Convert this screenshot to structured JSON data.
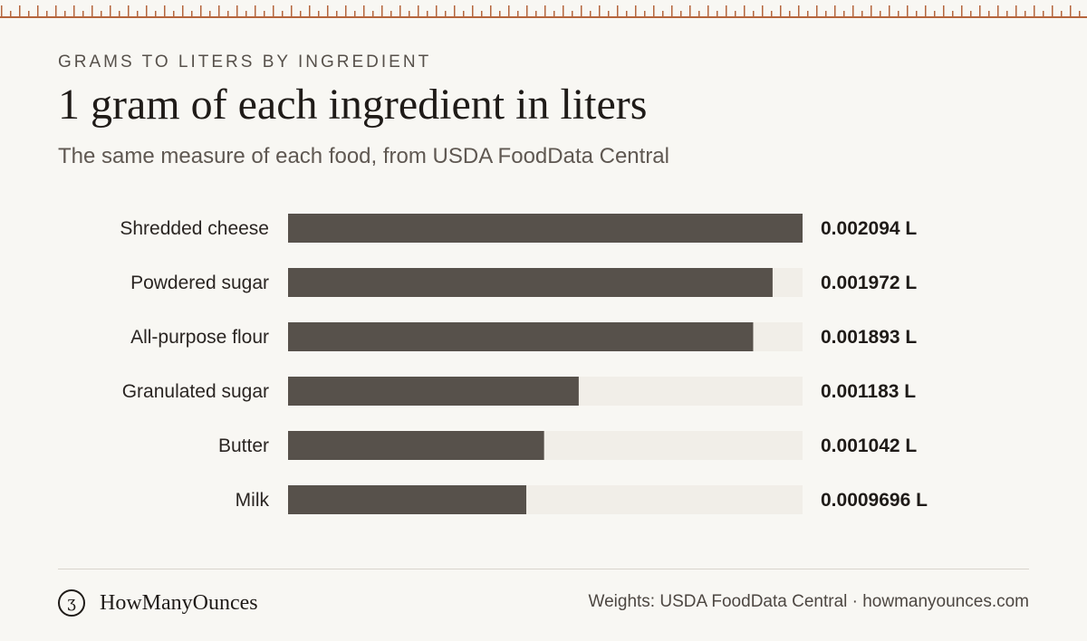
{
  "header": {
    "eyebrow": "GRAMS TO LITERS BY INGREDIENT",
    "title": "1 gram of each ingredient in liters",
    "subtitle": "The same measure of each food, from USDA FoodData Central"
  },
  "colors": {
    "bar": "#57514b",
    "track": "#f1eee8",
    "ruler": "#b5653c"
  },
  "chart_data": {
    "type": "bar",
    "orientation": "horizontal",
    "unit": "L",
    "categories": [
      "Shredded cheese",
      "Powdered sugar",
      "All-purpose flour",
      "Granulated sugar",
      "Butter",
      "Milk"
    ],
    "values": [
      0.002094,
      0.001972,
      0.001893,
      0.001183,
      0.001042,
      0.0009696
    ],
    "value_labels": [
      "0.002094 L",
      "0.001972 L",
      "0.001893 L",
      "0.001183 L",
      "0.001042 L",
      "0.0009696 L"
    ],
    "xlim": [
      0,
      0.002094
    ],
    "grid": false,
    "legend": "none"
  },
  "footer": {
    "brand_icon": "ounce-glyph-icon",
    "brand_glyph": "ʒ",
    "brand_name": "HowManyOunces",
    "note": "Weights: USDA FoodData Central · howmanyounces.com"
  }
}
